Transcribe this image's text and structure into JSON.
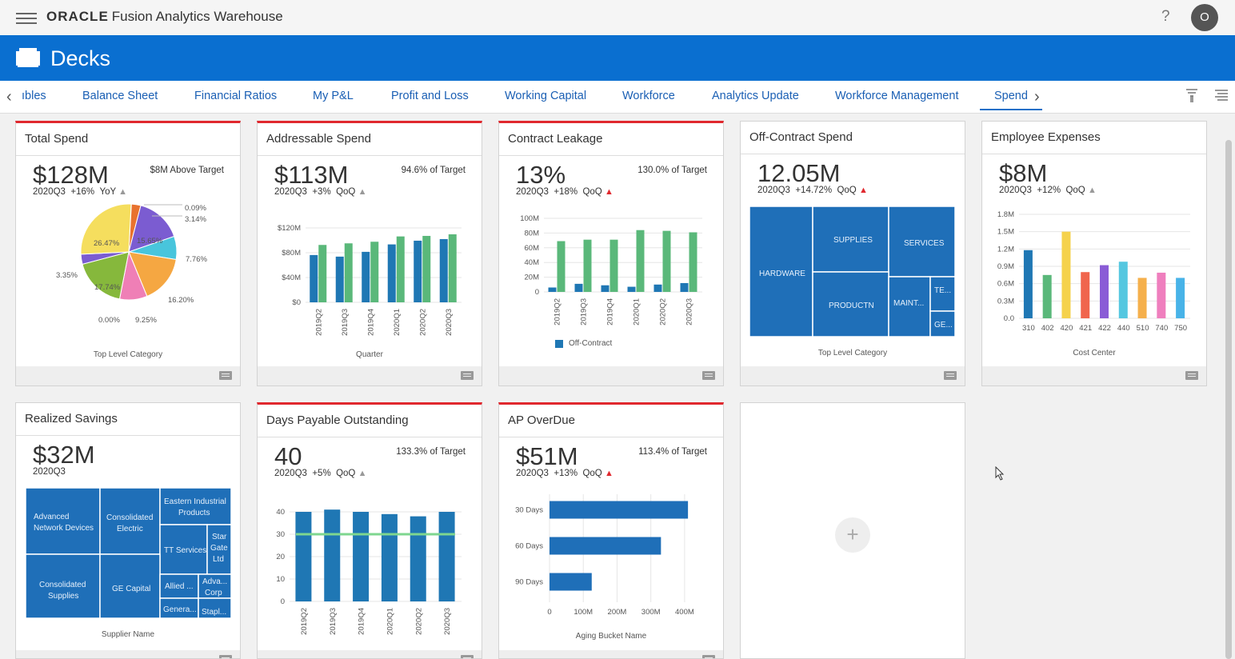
{
  "header": {
    "brand_oracle": "ORACLE",
    "brand_app": "Fusion Analytics Warehouse",
    "help": "?",
    "avatar": "O"
  },
  "decks_title": "Decks",
  "tabs": [
    {
      "label": "ıbles",
      "active": false
    },
    {
      "label": "Balance Sheet",
      "active": false
    },
    {
      "label": "Financial Ratios",
      "active": false
    },
    {
      "label": "My P&L",
      "active": false
    },
    {
      "label": "Profit and Loss",
      "active": false
    },
    {
      "label": "Working Capital",
      "active": false
    },
    {
      "label": "Workforce",
      "active": false
    },
    {
      "label": "Analytics Update",
      "active": false
    },
    {
      "label": "Workforce Management",
      "active": false
    },
    {
      "label": "Spend",
      "active": true
    }
  ],
  "icons": [
    "hamburger-icon",
    "decks-icon",
    "chevron-left-icon",
    "chevron-right-icon",
    "filter-icon",
    "menu-list-icon",
    "comment-icon",
    "add-icon",
    "cursor-icon"
  ],
  "colors": {
    "header_blue": "#0a6fd0",
    "tab_link": "#1a5fb4",
    "alert_red": "#e0282e",
    "bar_blue": "#1f77b4",
    "bar_green": "#5ab87a",
    "target_green": "#7ed68f"
  },
  "cards": {
    "total_spend": {
      "title": "Total Spend",
      "kpi": "$128M",
      "period": "2020Q3",
      "change": "+16%",
      "compare": "YoY",
      "target": "$8M Above Target",
      "axis_title": "Top Level Category",
      "chart_data": {
        "type": "pie",
        "slice_labels": [
          "26.47%",
          "15.65%",
          "7.76%",
          "16.20%",
          "9.25%",
          "0.00%",
          "17.74%",
          "3.35%",
          "0.09%",
          "3.14%"
        ],
        "slices": [
          {
            "label": "0.09%",
            "value": 0.09,
            "color": "#e8722e"
          },
          {
            "label": "3.14%",
            "value": 3.14,
            "color": "#e8722e"
          },
          {
            "label": "15.65%",
            "value": 15.65,
            "color": "#7b5cd1"
          },
          {
            "label": "7.76%",
            "value": 7.76,
            "color": "#48c5dc"
          },
          {
            "label": "16.20%",
            "value": 16.2,
            "color": "#f5a742"
          },
          {
            "label": "9.25%",
            "value": 9.25,
            "color": "#ef7fb6"
          },
          {
            "label": "0.00%",
            "value": 0.0,
            "color": "#999999"
          },
          {
            "label": "17.74%",
            "value": 17.74,
            "color": "#86b83c"
          },
          {
            "label": "3.35%",
            "value": 3.35,
            "color": "#7b5cd1"
          },
          {
            "label": "26.47%",
            "value": 26.47,
            "color": "#f5de5e"
          }
        ]
      }
    },
    "addressable_spend": {
      "title": "Addressable Spend",
      "kpi": "$113M",
      "period": "2020Q3",
      "change": "+3%",
      "compare": "QoQ",
      "target": "94.6% of Target",
      "axis_title": "Quarter",
      "chart_data": {
        "type": "bar",
        "categories": [
          "2019Q2",
          "2019Q3",
          "2019Q4",
          "2020Q1",
          "2020Q2",
          "2020Q3"
        ],
        "series": [
          {
            "values": [
              89,
              86,
              95,
              109,
              116,
              119
            ]
          },
          {
            "values": [
              108,
              111,
              114,
              124,
              125,
              128
            ]
          }
        ],
        "yticks": [
          "$120M",
          "$80M",
          "$40M",
          "$0"
        ],
        "ylim": [
          0,
          140
        ]
      }
    },
    "contract_leakage": {
      "title": "Contract Leakage",
      "kpi": "13%",
      "period": "2020Q3",
      "change": "+18%",
      "compare": "QoQ",
      "target": "130.0% of Target",
      "legend": "Off-Contract",
      "chart_data": {
        "type": "bar",
        "categories": [
          "2019Q2",
          "2019Q3",
          "2019Q4",
          "2020Q1",
          "2020Q2",
          "2020Q3"
        ],
        "series": [
          {
            "name": "Off-Contract",
            "values": [
              6,
              11,
              9,
              7,
              10,
              12
            ]
          },
          {
            "values": [
              69,
              71,
              71,
              84,
              83,
              81
            ]
          }
        ],
        "yticks": [
          "100M",
          "80M",
          "60M",
          "40M",
          "20M",
          "0"
        ],
        "ylim": [
          0,
          100
        ]
      }
    },
    "off_contract_spend": {
      "title": "Off-Contract Spend",
      "kpi": "12.05M",
      "period": "2020Q3",
      "change": "+14.72%",
      "compare": "QoQ",
      "axis_title": "Top Level Category",
      "treemap": [
        "HARDWARE",
        "SUPPLIES",
        "SERVICES",
        "PRODUCTN",
        "MAINT...",
        "TE...",
        "GE..."
      ]
    },
    "employee_expenses": {
      "title": "Employee Expenses",
      "kpi": "$8M",
      "period": "2020Q3",
      "change": "+12%",
      "compare": "QoQ",
      "axis_title": "Cost Center",
      "chart_data": {
        "type": "bar",
        "categories": [
          "310",
          "402",
          "420",
          "421",
          "422",
          "440",
          "510",
          "740",
          "750"
        ],
        "values": [
          1.18,
          0.75,
          1.5,
          0.8,
          0.92,
          0.98,
          0.7,
          0.79,
          0.7
        ],
        "colors": [
          "#1f77b4",
          "#5ab87a",
          "#f5d24c",
          "#f0654d",
          "#8a5cd6",
          "#54c7e0",
          "#f5b04c",
          "#ef7fbe",
          "#48b3e8"
        ],
        "yticks": [
          "1.8M",
          "1.5M",
          "1.2M",
          "0.9M",
          "0.6M",
          "0.3M",
          "0.0"
        ],
        "ylim": [
          0,
          1.8
        ]
      }
    },
    "realized_savings": {
      "title": "Realized Savings",
      "kpi": "$32M",
      "period": "2020Q3",
      "axis_title": "Supplier Name",
      "treemap": [
        "Advanced Network Devices",
        "Consolidated Electric",
        "Eastern Industrial Products",
        "TT Services",
        "Star Gate Ltd",
        "Consolidated Supplies",
        "GE Capital",
        "Allied ...",
        "Adva... Corp",
        "Genera...",
        "Stapl..."
      ]
    },
    "dpo": {
      "title": "Days Payable Outstanding",
      "kpi": "40",
      "period": "2020Q3",
      "change": "+5%",
      "compare": "QoQ",
      "target": "133.3% of Target",
      "chart_data": {
        "type": "bar",
        "categories": [
          "2019Q2",
          "2019Q3",
          "2019Q4",
          "2020Q1",
          "2020Q2",
          "2020Q3"
        ],
        "values": [
          40,
          41,
          40,
          39,
          38,
          40
        ],
        "target": 30,
        "yticks": [
          "40",
          "30",
          "20",
          "10",
          "0"
        ],
        "ylim": [
          0,
          40
        ]
      }
    },
    "ap_overdue": {
      "title": "AP OverDue",
      "kpi": "$51M",
      "period": "2020Q3",
      "change": "+13%",
      "compare": "QoQ",
      "target": "113.4% of Target",
      "axis_title": "Aging Bucket Name",
      "chart_data": {
        "type": "bar",
        "categories": [
          "30 Days",
          "60 Days",
          "90 Days"
        ],
        "values": [
          410,
          330,
          125
        ],
        "xticks": [
          "0",
          "100M",
          "200M",
          "300M",
          "400M"
        ],
        "xlim": [
          0,
          450
        ]
      }
    }
  }
}
